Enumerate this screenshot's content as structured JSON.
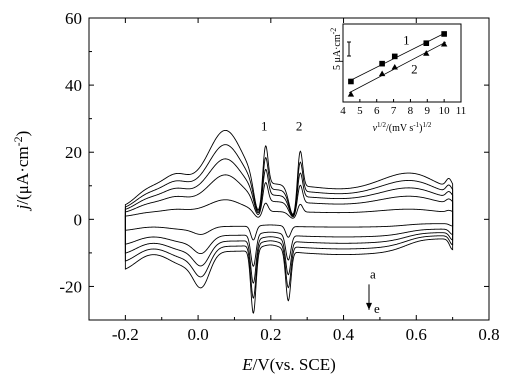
{
  "chart_data": {
    "type": "line",
    "title": "",
    "main": {
      "xlim": [
        -0.3,
        0.8
      ],
      "ylim": [
        -30,
        60
      ],
      "xticks": [
        -0.2,
        0.0,
        0.2,
        0.4,
        0.6,
        0.8
      ],
      "xtick_labels": [
        "-0.2",
        "0.0",
        "0.2",
        "0.4",
        "0.6",
        "0.8"
      ],
      "yticks": [
        -20,
        0,
        20,
        40,
        60
      ],
      "ytick_labels": [
        "-20",
        "0",
        "20",
        "40",
        "60"
      ],
      "xlabel": {
        "italic": "E",
        "rest": "/V(vs. SCE)"
      },
      "ylabel": {
        "italic": "j",
        "rest": "/(μA·cm",
        "sup": "-2",
        "close": ")"
      },
      "grid": false,
      "curve_scales": [
        0.22,
        0.5,
        0.68,
        0.84,
        1.0
      ],
      "annotations": {
        "peak_1": {
          "text": "1",
          "x": 0.182,
          "y": 26.5
        },
        "peak_2": {
          "text": "2",
          "x": 0.278,
          "y": 26.5
        },
        "arrow": {
          "from": "a",
          "to": "e",
          "x": 0.47,
          "y_from": -17,
          "y_to": -27
        }
      }
    },
    "inset": {
      "xlim": [
        4,
        11
      ],
      "ylim": [
        0,
        1
      ],
      "xticks": [
        4,
        5,
        6,
        7,
        8,
        9,
        10,
        11
      ],
      "xtick_labels": [
        "4",
        "5",
        "6",
        "7",
        "8",
        "9",
        "10",
        "11"
      ],
      "xlabel": {
        "base": "v",
        "sup1": "1/2",
        "mid": "/(mV s",
        "sup2": "-1",
        "sup3": "1/2",
        "close": ")"
      },
      "scale_bar_label": "5 μA·cm",
      "scale_bar_sup": "-2",
      "series": [
        {
          "name": "1",
          "marker": "square",
          "x": [
            4.47,
            6.32,
            7.07,
            8.94,
            10.0
          ],
          "y": [
            0.22,
            0.49,
            0.6,
            0.8,
            0.94
          ]
        },
        {
          "name": "2",
          "marker": "triangle",
          "x": [
            4.47,
            6.32,
            7.07,
            8.94,
            10.0
          ],
          "y": [
            0.03,
            0.34,
            0.44,
            0.65,
            0.79
          ]
        }
      ]
    }
  }
}
